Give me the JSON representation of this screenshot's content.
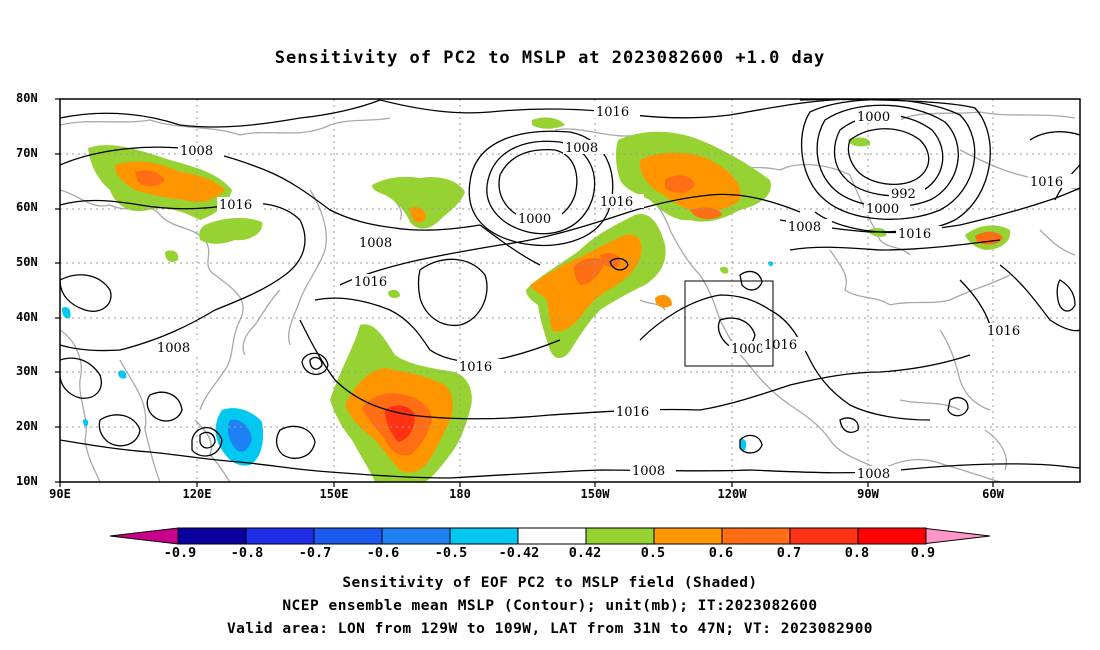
{
  "title": "Sensitivity of PC2 to MSLP at 2023082600 +1.0 day",
  "lat_labels": [
    "80N",
    "70N",
    "60N",
    "50N",
    "40N",
    "30N",
    "20N",
    "10N"
  ],
  "lon_labels": [
    "90E",
    "120E",
    "150E",
    "180",
    "150W",
    "120W",
    "90W",
    "60W"
  ],
  "contour_labels": {
    "c1016_top": "1016",
    "c1008_top": "1008",
    "c1000_top": "1000",
    "c1008_asia": "1008",
    "c1016_asia": "1016",
    "c1000_pac": "1000",
    "c1016_pac": "1016",
    "c1008_jp": "1008",
    "c1016_jp": "1016",
    "c1008_west": "1008",
    "c1016_mid": "1016",
    "c1016_south": "1016",
    "c1008_south": "1008",
    "c1008_na": "1008",
    "c992": "992",
    "c1000_ca": "1000",
    "c1016_ca": "1016",
    "c1016_e": "1016",
    "c1000_us": "1000",
    "c1016_us": "1016",
    "c1016_atl": "1016",
    "c1008_sa": "1008"
  },
  "colorbar": {
    "labels": [
      "-0.9",
      "-0.8",
      "-0.7",
      "-0.6",
      "-0.5",
      "-0.42",
      "0.42",
      "0.5",
      "0.6",
      "0.7",
      "0.8",
      "0.9"
    ],
    "colors": [
      "#0a00a0",
      "#1e2ee6",
      "#1e5af0",
      "#1e82f5",
      "#00c8f0",
      "#ffffff",
      "#96d232",
      "#ff9600",
      "#ff6e14",
      "#ff3214",
      "#ff0000"
    ],
    "end_low": "#c8008c",
    "end_high": "#ff96c8"
  },
  "footer": {
    "line1": "Sensitivity of EOF PC2 to MSLP field (Shaded)",
    "line2": "NCEP ensemble mean MSLP (Contour); unit(mb); IT:2023082600",
    "line3": "Valid area: LON from 129W to 109W, LAT from 31N to 47N; VT: 2023082900"
  }
}
